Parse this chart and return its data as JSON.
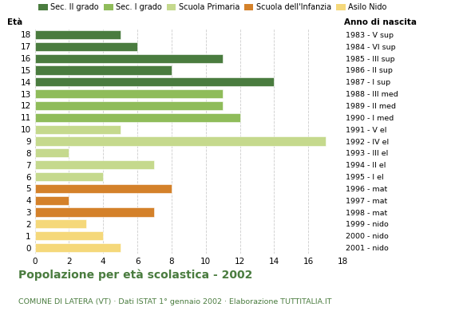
{
  "ages": [
    18,
    17,
    16,
    15,
    14,
    13,
    12,
    11,
    10,
    9,
    8,
    7,
    6,
    5,
    4,
    3,
    2,
    1,
    0
  ],
  "right_labels": [
    "1983 - V sup",
    "1984 - VI sup",
    "1985 - III sup",
    "1986 - II sup",
    "1987 - I sup",
    "1988 - III med",
    "1989 - II med",
    "1990 - I med",
    "1991 - V el",
    "1992 - IV el",
    "1993 - III el",
    "1994 - II el",
    "1995 - I el",
    "1996 - mat",
    "1997 - mat",
    "1998 - mat",
    "1999 - nido",
    "2000 - nido",
    "2001 - nido"
  ],
  "values": [
    5,
    6,
    11,
    8,
    14,
    11,
    11,
    12,
    5,
    17,
    2,
    7,
    4,
    8,
    2,
    7,
    3,
    4,
    5
  ],
  "colors": [
    "#4a7c3f",
    "#4a7c3f",
    "#4a7c3f",
    "#4a7c3f",
    "#4a7c3f",
    "#8fbc5a",
    "#8fbc5a",
    "#8fbc5a",
    "#c5d98d",
    "#c5d98d",
    "#c5d98d",
    "#c5d98d",
    "#c5d98d",
    "#d4812a",
    "#d4812a",
    "#d4812a",
    "#f5d87a",
    "#f5d87a",
    "#f5d87a"
  ],
  "legend_labels": [
    "Sec. II grado",
    "Sec. I grado",
    "Scuola Primaria",
    "Scuola dell'Infanzia",
    "Asilo Nido"
  ],
  "legend_colors": [
    "#4a7c3f",
    "#8fbc5a",
    "#c5d98d",
    "#d4812a",
    "#f5d87a"
  ],
  "title": "Popolazione per età scolastica - 2002",
  "subtitle": "COMUNE DI LATERA (VT) · Dati ISTAT 1° gennaio 2002 · Elaborazione TUTTITALIA.IT",
  "xlabel_left": "Età",
  "xlabel_right": "Anno di nascita",
  "xlim": [
    0,
    18
  ],
  "xticks": [
    0,
    2,
    4,
    6,
    8,
    10,
    12,
    14,
    16,
    18
  ],
  "background_color": "#ffffff",
  "grid_color": "#cccccc",
  "title_color": "#4a7c3f",
  "subtitle_color": "#4a7c3f"
}
